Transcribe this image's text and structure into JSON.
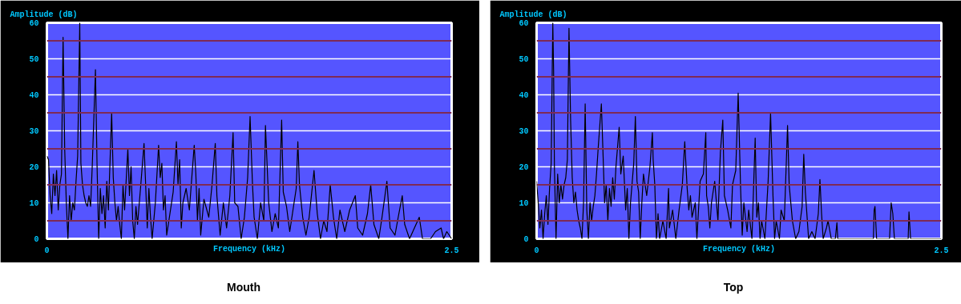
{
  "chart_data": [
    {
      "type": "line",
      "title": "Mouth",
      "xlabel": "Frequency (kHz)",
      "ylabel": "Amplitude (dB)",
      "xlim": [
        0,
        2.5
      ],
      "xticks": [
        {
          "value": 0,
          "label": "0"
        },
        2.5
      ],
      "ylim": [
        0,
        60
      ],
      "yticks": [
        {
          "value": 0,
          "label": "0"
        },
        10,
        20,
        30,
        40,
        50,
        60
      ],
      "grid": "y",
      "line_style": "solid",
      "ref_lines": [
        {
          "axis": "y",
          "value": 5,
          "color": "#7f2a55"
        },
        {
          "axis": "y",
          "value": 15,
          "color": "#7f2a55"
        },
        {
          "axis": "y",
          "value": 25,
          "color": "#7f2a55"
        },
        {
          "axis": "y",
          "value": 35,
          "color": "#7f2a55"
        },
        {
          "axis": "y",
          "value": 45,
          "color": "#7f2a55"
        },
        {
          "axis": "y",
          "value": 55,
          "color": "#7f2a55"
        }
      ],
      "series": [
        {
          "color": "#000000",
          "x": [
            0.0,
            0.01,
            0.02,
            0.03,
            0.04,
            0.05,
            0.06,
            0.07,
            0.08,
            0.09,
            0.1,
            0.11,
            0.12,
            0.13,
            0.14,
            0.15,
            0.16,
            0.17,
            0.18,
            0.19,
            0.203,
            0.21,
            0.22,
            0.23,
            0.24,
            0.25,
            0.26,
            0.27,
            0.28,
            0.3,
            0.31,
            0.32,
            0.33,
            0.34,
            0.35,
            0.36,
            0.37,
            0.38,
            0.4,
            0.41,
            0.42,
            0.43,
            0.44,
            0.45,
            0.46,
            0.47,
            0.48,
            0.5,
            0.51,
            0.52,
            0.53,
            0.54,
            0.55,
            0.56,
            0.58,
            0.6,
            0.61,
            0.62,
            0.63,
            0.64,
            0.65,
            0.67,
            0.69,
            0.7,
            0.71,
            0.72,
            0.73,
            0.74,
            0.76,
            0.78,
            0.8,
            0.81,
            0.82,
            0.83,
            0.84,
            0.86,
            0.88,
            0.91,
            0.92,
            0.93,
            0.94,
            0.95,
            0.97,
            1.0,
            1.02,
            1.04,
            1.05,
            1.07,
            1.09,
            1.11,
            1.13,
            1.15,
            1.16,
            1.18,
            1.2,
            1.22,
            1.24,
            1.255,
            1.27,
            1.28,
            1.3,
            1.32,
            1.34,
            1.35,
            1.37,
            1.39,
            1.41,
            1.43,
            1.45,
            1.46,
            1.48,
            1.5,
            1.52,
            1.54,
            1.55,
            1.56,
            1.58,
            1.6,
            1.62,
            1.65,
            1.67,
            1.69,
            1.71,
            1.73,
            1.75,
            1.77,
            1.79,
            1.81,
            1.84,
            1.87,
            1.905,
            1.92,
            1.95,
            1.98,
            2.0,
            2.02,
            2.05,
            2.07,
            2.1,
            2.12,
            2.15,
            2.17,
            2.195,
            2.21,
            2.24,
            2.27,
            2.3,
            2.32,
            2.37,
            2.4,
            2.435,
            2.45,
            2.47,
            2.5
          ],
          "values": [
            23,
            22,
            12,
            7,
            18,
            12,
            19,
            8,
            15,
            18,
            56,
            25,
            10,
            0,
            12,
            5,
            10,
            8,
            16,
            23,
            60,
            21,
            15,
            12,
            10,
            9,
            12,
            9,
            20,
            47,
            20,
            0,
            14,
            7,
            12,
            3,
            16,
            8,
            35,
            17,
            10,
            5,
            9,
            4,
            0,
            15,
            8,
            25,
            12,
            20,
            5,
            0,
            9,
            4,
            15,
            26.5,
            15,
            3,
            14,
            6,
            0,
            10,
            26,
            17,
            21,
            8,
            12,
            1,
            7,
            13,
            27,
            15,
            22,
            3,
            10,
            14,
            8,
            26,
            18,
            5,
            14,
            1,
            11,
            6,
            15,
            26.5,
            12,
            1,
            10,
            3,
            12,
            29.5,
            10,
            9,
            0,
            6,
            17,
            34,
            15,
            6,
            0,
            10,
            5,
            31.5,
            10,
            2,
            7,
            3,
            33,
            13,
            9,
            2,
            8,
            14,
            27,
            15,
            6,
            1,
            6,
            19,
            7,
            0,
            5,
            2,
            15,
            6,
            0,
            8,
            2,
            8,
            12,
            3,
            1,
            7,
            15,
            4,
            0,
            6,
            16,
            3,
            1,
            6,
            12,
            4,
            0,
            3,
            6,
            0,
            0,
            2,
            3,
            0,
            2,
            0
          ]
        }
      ]
    },
    {
      "type": "line",
      "title": "Top",
      "xlabel": "Frequency (kHz)",
      "ylabel": "Amplitude (dB)",
      "xlim": [
        0,
        2.5
      ],
      "xticks": [
        {
          "value": 0,
          "label": "0"
        },
        2.5
      ],
      "ylim": [
        0,
        60
      ],
      "yticks": [
        {
          "value": 0,
          "label": "0"
        },
        10,
        20,
        30,
        40,
        50,
        60
      ],
      "grid": "y",
      "line_style": "solid",
      "ref_lines": [
        {
          "axis": "y",
          "value": 5,
          "color": "#7f2a55"
        },
        {
          "axis": "y",
          "value": 15,
          "color": "#7f2a55"
        },
        {
          "axis": "y",
          "value": 25,
          "color": "#7f2a55"
        },
        {
          "axis": "y",
          "value": 35,
          "color": "#7f2a55"
        },
        {
          "axis": "y",
          "value": 45,
          "color": "#7f2a55"
        },
        {
          "axis": "y",
          "value": 55,
          "color": "#7f2a55"
        }
      ],
      "series": [
        {
          "color": "#000000",
          "x": [
            0.0,
            0.01,
            0.02,
            0.03,
            0.04,
            0.05,
            0.06,
            0.07,
            0.08,
            0.09,
            0.1,
            0.105,
            0.11,
            0.12,
            0.13,
            0.14,
            0.15,
            0.16,
            0.17,
            0.18,
            0.19,
            0.2,
            0.21,
            0.22,
            0.23,
            0.24,
            0.25,
            0.26,
            0.27,
            0.28,
            0.29,
            0.3,
            0.31,
            0.32,
            0.33,
            0.34,
            0.35,
            0.36,
            0.37,
            0.38,
            0.4,
            0.41,
            0.42,
            0.43,
            0.44,
            0.45,
            0.46,
            0.47,
            0.48,
            0.49,
            0.51,
            0.52,
            0.535,
            0.55,
            0.56,
            0.57,
            0.58,
            0.6,
            0.61,
            0.62,
            0.63,
            0.64,
            0.65,
            0.66,
            0.68,
            0.7,
            0.715,
            0.72,
            0.73,
            0.74,
            0.75,
            0.76,
            0.78,
            0.8,
            0.815,
            0.82,
            0.84,
            0.86,
            0.88,
            0.9,
            0.915,
            0.93,
            0.94,
            0.95,
            0.96,
            0.98,
            0.99,
            1.01,
            1.03,
            1.045,
            1.05,
            1.06,
            1.07,
            1.08,
            1.1,
            1.12,
            1.135,
            1.15,
            1.16,
            1.18,
            1.2,
            1.21,
            1.23,
            1.245,
            1.26,
            1.27,
            1.28,
            1.3,
            1.31,
            1.33,
            1.35,
            1.36,
            1.37,
            1.38,
            1.39,
            1.41,
            1.43,
            1.445,
            1.46,
            1.47,
            1.48,
            1.5,
            1.51,
            1.53,
            1.55,
            1.56,
            1.58,
            1.6,
            1.62,
            1.64,
            1.65,
            1.66,
            1.68,
            1.7,
            1.72,
            1.74,
            1.75,
            1.76,
            1.77,
            1.79,
            1.8,
            1.82,
            1.845,
            1.855,
            1.86,
            2.08,
            2.085,
            2.09,
            2.1,
            2.18,
            2.19,
            2.2,
            2.21,
            2.295,
            2.3,
            2.31,
            2.5
          ],
          "values": [
            16,
            10,
            3,
            8,
            0,
            7,
            12,
            4,
            14,
            21,
            60,
            47,
            20,
            0,
            18,
            10,
            15,
            11,
            15,
            17,
            22,
            58.5,
            33,
            17,
            10,
            13,
            8,
            5,
            3,
            0,
            10,
            37.5,
            8,
            0,
            10,
            5,
            9,
            12,
            18,
            25,
            37.5,
            24,
            10,
            15,
            5,
            14,
            9,
            17,
            11,
            20,
            31,
            18,
            23,
            8,
            14,
            0,
            10,
            21,
            34,
            16,
            13,
            0,
            10,
            18,
            12,
            20,
            29.5,
            22,
            15,
            0,
            7,
            0,
            5,
            0,
            14,
            3,
            8,
            0,
            8,
            15,
            27,
            14,
            8,
            12,
            6,
            10,
            0,
            16,
            18,
            29.5,
            12,
            9,
            3,
            10,
            16,
            5,
            24,
            33,
            12,
            8,
            3,
            15,
            19,
            40.5,
            14,
            1,
            10,
            2,
            8,
            0,
            28,
            6,
            10,
            0,
            5,
            0,
            16,
            35,
            12,
            0,
            5,
            0,
            8,
            5,
            31.5,
            15,
            5,
            0,
            2,
            9,
            23.5,
            13,
            0,
            2,
            0,
            7,
            16.5,
            7,
            0,
            3,
            5,
            0,
            0,
            4.5,
            0,
            0,
            8,
            9,
            0,
            0,
            10,
            7,
            0,
            0,
            7.5,
            0,
            0
          ]
        }
      ]
    }
  ]
}
